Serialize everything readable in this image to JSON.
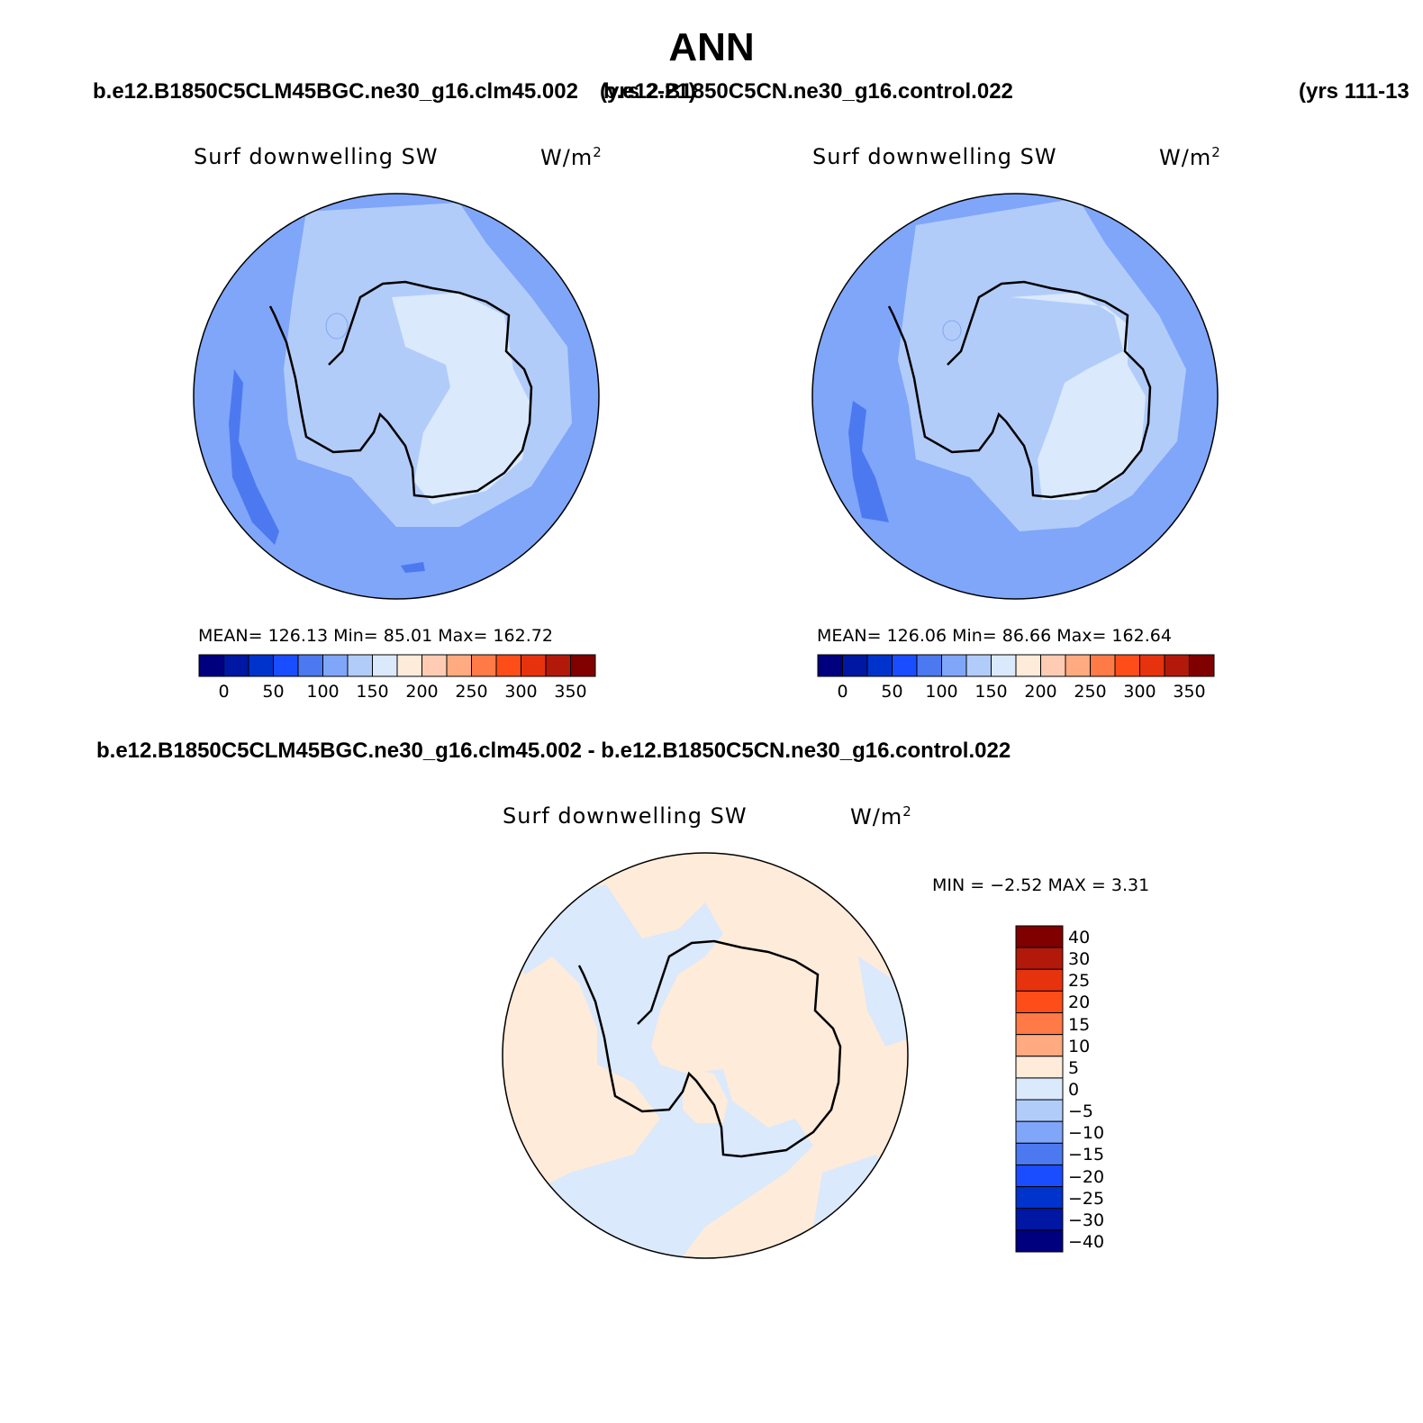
{
  "season": "ANN",
  "panels": [
    {
      "case": "b.e12.B1850C5CLM45BGC.ne30_g16.clm45.002",
      "years": "(yrs 2-21)",
      "title": "Surf downwelling SW",
      "units": "W/m",
      "units_sup": "2",
      "stats": "MEAN= 126.13   Min=   85.01   Max= 162.72",
      "mean": 126.13,
      "min": 85.01,
      "max": 162.72
    },
    {
      "case": "b.e12.B1850C5CN.ne30_g16.control.022",
      "years": "(yrs 111-13",
      "title": "Surf downwelling SW",
      "units": "W/m",
      "units_sup": "2",
      "stats": "MEAN= 126.06   Min=   86.66   Max= 162.64",
      "mean": 126.06,
      "min": 86.66,
      "max": 162.64
    }
  ],
  "difference": {
    "case": "b.e12.B1850C5CLM45BGC.ne30_g16.clm45.002 - b.e12.B1850C5CN.ne30_g16.control.022",
    "title": "Surf downwelling SW",
    "units": "W/m",
    "units_sup": "2",
    "stats": "MIN =   −2.52 MAX =     3.31",
    "min": -2.52,
    "max": 3.31
  },
  "colorbar_main": {
    "colors": [
      "#00007f",
      "#0017a3",
      "#0033cc",
      "#1a4dff",
      "#4d79f0",
      "#80a6fa",
      "#b2ccfa",
      "#dae9fc",
      "#ffebd9",
      "#ffcbb2",
      "#ffaa80",
      "#ff7a47",
      "#ff4d1a",
      "#e6330d",
      "#b3190a",
      "#800000"
    ],
    "labels": [
      "0",
      "50",
      "100",
      "150",
      "200",
      "250",
      "300",
      "350"
    ]
  },
  "colorbar_diff": {
    "colors": [
      "#800000",
      "#b3190a",
      "#e6330d",
      "#ff4d1a",
      "#ff7a47",
      "#ffaa80",
      "#ffebd9",
      "#dae9fc",
      "#b2ccfa",
      "#80a6fa",
      "#4d79f0",
      "#1a4dff",
      "#0033cc",
      "#0017a3",
      "#00007f"
    ],
    "labels": [
      "40",
      "30",
      "25",
      "20",
      "15",
      "10",
      "5",
      "0",
      "−5",
      "−10",
      "−15",
      "−20",
      "−25",
      "−30",
      "−40"
    ]
  },
  "map_colors": {
    "ocean_outer": "#80a6fa",
    "ocean_low": "#4d79f0",
    "mid": "#b2ccfa",
    "interior": "#dae9fc",
    "diff_neg": "#dae9fc",
    "diff_pos": "#ffebd9"
  }
}
